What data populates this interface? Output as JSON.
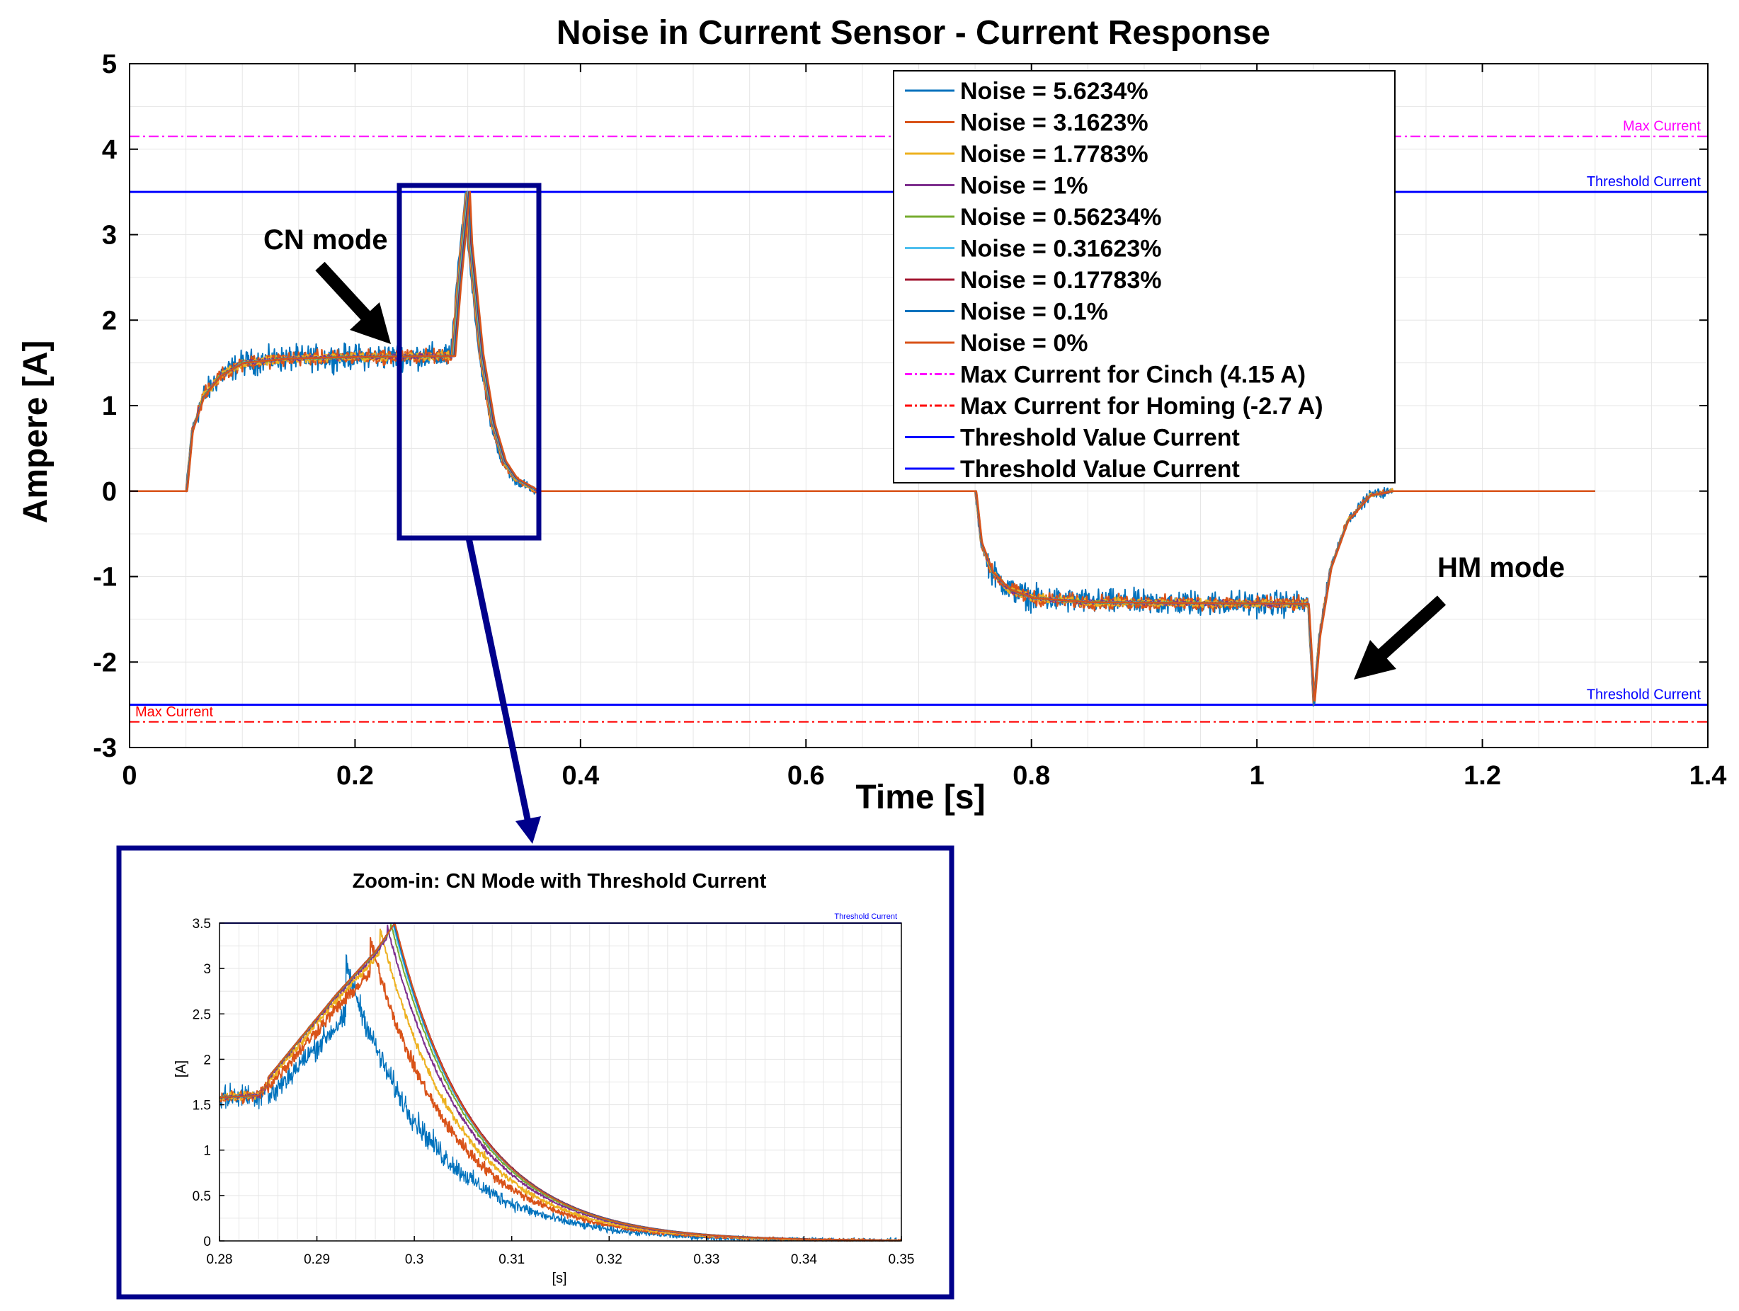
{
  "chart_data": [
    {
      "type": "line",
      "title": "Noise in Current Sensor - Current Response",
      "xlabel": "Time [s]",
      "ylabel": "Ampere [A]",
      "xlim": [
        0,
        1.4
      ],
      "ylim": [
        -3,
        5
      ],
      "xticks": [
        0,
        0.2,
        0.4,
        0.6,
        0.8,
        1,
        1.2,
        1.4
      ],
      "xtick_labels": [
        "0",
        "0.2",
        "0.4",
        "0.6",
        "0.8",
        "1",
        "1.2",
        "1.4"
      ],
      "yticks": [
        5,
        4,
        3,
        2,
        1,
        0,
        -1,
        -2,
        -3
      ],
      "ytick_labels": [
        "5",
        "4",
        "3",
        "2",
        "1",
        "0",
        "-1",
        "-2",
        "-3"
      ],
      "grid": true,
      "legend_position": "top-right",
      "series": [
        {
          "name": "Noise = 5.6234%",
          "color": "#0072BD",
          "noise": 5.6234
        },
        {
          "name": "Noise = 3.1623%",
          "color": "#D95319",
          "noise": 3.1623
        },
        {
          "name": "Noise = 1.7783%",
          "color": "#EDB120",
          "noise": 1.7783
        },
        {
          "name": "Noise = 1%",
          "color": "#7E2F8E",
          "noise": 1
        },
        {
          "name": "Noise = 0.56234%",
          "color": "#77AC30",
          "noise": 0.56234
        },
        {
          "name": "Noise = 0.31623%",
          "color": "#4DBEEE",
          "noise": 0.31623
        },
        {
          "name": "Noise = 0.17783%",
          "color": "#A2142F",
          "noise": 0.17783
        },
        {
          "name": "Noise = 0.1%",
          "color": "#0072BD",
          "noise": 0.1
        },
        {
          "name": "Noise = 0%",
          "color": "#D95319",
          "noise": 0
        }
      ],
      "current_profile": [
        [
          0,
          0
        ],
        [
          0.05,
          0
        ],
        [
          0.055,
          0.7
        ],
        [
          0.065,
          1.1
        ],
        [
          0.08,
          1.35
        ],
        [
          0.1,
          1.5
        ],
        [
          0.14,
          1.55
        ],
        [
          0.2,
          1.57
        ],
        [
          0.285,
          1.58
        ],
        [
          0.29,
          2.4
        ],
        [
          0.295,
          3.1
        ],
        [
          0.298,
          3.5
        ],
        [
          0.3,
          2.9
        ],
        [
          0.31,
          1.6
        ],
        [
          0.32,
          0.8
        ],
        [
          0.33,
          0.35
        ],
        [
          0.34,
          0.15
        ],
        [
          0.36,
          0
        ],
        [
          0.75,
          0
        ],
        [
          0.755,
          -0.6
        ],
        [
          0.765,
          -0.95
        ],
        [
          0.78,
          -1.15
        ],
        [
          0.8,
          -1.25
        ],
        [
          0.85,
          -1.3
        ],
        [
          1.045,
          -1.32
        ],
        [
          1.048,
          -2.0
        ],
        [
          1.05,
          -2.5
        ],
        [
          1.055,
          -1.7
        ],
        [
          1.065,
          -0.9
        ],
        [
          1.08,
          -0.35
        ],
        [
          1.1,
          -0.05
        ],
        [
          1.12,
          0
        ],
        [
          1.3,
          0
        ]
      ],
      "reference_lines": [
        {
          "name": "Max Current for Cinch (4.15 A)",
          "y": 4.15,
          "color": "#FF00FF",
          "style": "dashdot",
          "label": "Max Current",
          "label_color": "#FF00FF"
        },
        {
          "name": "Max Current for Homing (-2.7 A)",
          "y": -2.7,
          "color": "#FF0000",
          "style": "dashdot",
          "label": "Max Current",
          "label_color": "#FF0000"
        },
        {
          "name": "Threshold Value Current",
          "y": 3.5,
          "color": "#0000FF",
          "style": "solid",
          "label": "Threshold Current",
          "label_color": "#0000FF"
        },
        {
          "name": "Threshold Value Current",
          "y": -2.5,
          "color": "#0000FF",
          "style": "solid",
          "label": "Threshold Current",
          "label_color": "#0000FF"
        }
      ],
      "annotations": [
        "CN mode",
        "HM mode"
      ]
    },
    {
      "type": "line",
      "title": "Zoom-in: CN Mode with Threshold Current",
      "xlabel": "[s]",
      "ylabel": "[A]",
      "xlim": [
        0.28,
        0.35
      ],
      "ylim": [
        0,
        3.5
      ],
      "xticks": [
        0.28,
        0.29,
        0.3,
        0.31,
        0.32,
        0.33,
        0.34,
        0.35
      ],
      "xtick_labels": [
        "0.28",
        "0.29",
        "0.3",
        "0.31",
        "0.32",
        "0.33",
        "0.34",
        "0.35"
      ],
      "yticks": [
        3.5,
        3,
        2.5,
        2,
        1.5,
        1,
        0.5,
        0
      ],
      "ytick_labels": [
        "3.5",
        "3",
        "2.5",
        "2",
        "1.5",
        "1",
        "0.5",
        "0"
      ],
      "grid": true,
      "threshold": {
        "y": 3.5,
        "label": "Threshold Current",
        "color": "#0000FF"
      },
      "rise_profile": [
        [
          0.28,
          1.58
        ],
        [
          0.284,
          1.6
        ],
        [
          0.288,
          2.1
        ],
        [
          0.292,
          2.6
        ],
        [
          0.296,
          3.05
        ],
        [
          0.298,
          3.35
        ]
      ],
      "peaks": [
        {
          "color": "#0072BD",
          "t_peak": 0.293,
          "y_peak": 3.05,
          "tau": 0.0085
        },
        {
          "color": "#D95319",
          "t_peak": 0.2955,
          "y_peak": 3.3,
          "tau": 0.0083
        },
        {
          "color": "#EDB120",
          "t_peak": 0.2965,
          "y_peak": 3.42,
          "tau": 0.0082
        },
        {
          "color": "#7E2F8E",
          "t_peak": 0.2972,
          "y_peak": 3.47,
          "tau": 0.0082
        },
        {
          "color": "#77AC30",
          "t_peak": 0.2976,
          "y_peak": 3.49,
          "tau": 0.0082
        },
        {
          "color": "#4DBEEE",
          "t_peak": 0.2978,
          "y_peak": 3.5,
          "tau": 0.0082
        },
        {
          "color": "#A2142F",
          "t_peak": 0.298,
          "y_peak": 3.5,
          "tau": 0.0082
        },
        {
          "color": "#0072BD",
          "t_peak": 0.2979,
          "y_peak": 3.5,
          "tau": 0.0082
        },
        {
          "color": "#D95319",
          "t_peak": 0.298,
          "y_peak": 3.5,
          "tau": 0.0081
        }
      ]
    }
  ],
  "styles": {
    "axes_color": "#000000",
    "grid_color": "#e6e6e6",
    "highlight_box_color": "#00008B",
    "arrow_color": "#000000"
  }
}
